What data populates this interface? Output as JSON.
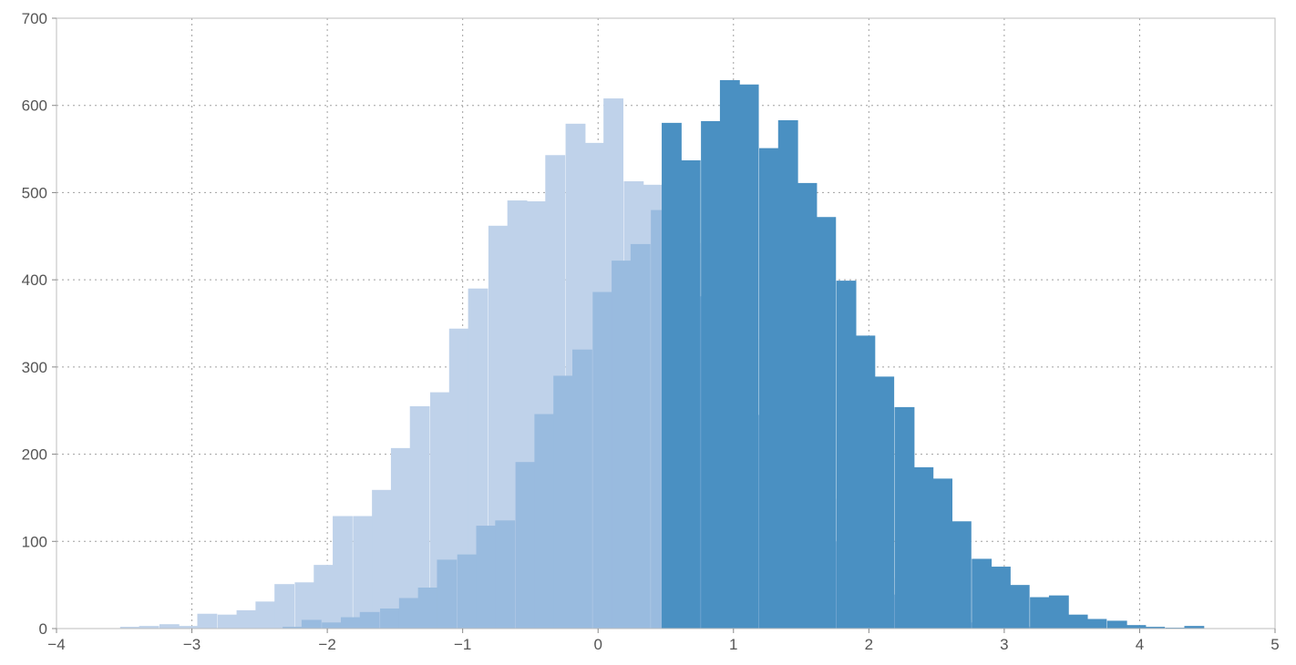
{
  "chart_data": {
    "type": "bar",
    "title": "",
    "xlabel": "",
    "ylabel": "",
    "xlim": [
      -4,
      5
    ],
    "ylim": [
      0,
      700
    ],
    "x_ticks": [
      -4,
      -3,
      -2,
      -1,
      0,
      1,
      2,
      3,
      4,
      5
    ],
    "x_tick_labels": [
      "−4",
      "−3",
      "−2",
      "−1",
      "0",
      "1",
      "2",
      "3",
      "4",
      "5"
    ],
    "y_ticks": [
      0,
      100,
      200,
      300,
      400,
      500,
      600,
      700
    ],
    "y_tick_labels": [
      "0",
      "100",
      "200",
      "300",
      "400",
      "500",
      "600",
      "700"
    ],
    "grid": true,
    "legend": "none",
    "bin_width": 0.143,
    "series": [
      {
        "color": "#bfd2ea",
        "bins": [
          [
            -3.53,
            2
          ],
          [
            -3.39,
            3
          ],
          [
            -3.24,
            5
          ],
          [
            -3.1,
            3
          ],
          [
            -2.96,
            17
          ],
          [
            -2.81,
            16
          ],
          [
            -2.67,
            21
          ],
          [
            -2.53,
            31
          ],
          [
            -2.39,
            51
          ],
          [
            -2.24,
            53
          ],
          [
            -2.1,
            73
          ],
          [
            -1.96,
            129
          ],
          [
            -1.81,
            129
          ],
          [
            -1.67,
            159
          ],
          [
            -1.53,
            207
          ],
          [
            -1.39,
            255
          ],
          [
            -1.24,
            271
          ],
          [
            -1.1,
            344
          ],
          [
            -0.96,
            390
          ],
          [
            -0.81,
            462
          ],
          [
            -0.67,
            491
          ],
          [
            -0.53,
            490
          ],
          [
            -0.39,
            543
          ],
          [
            -0.24,
            579
          ],
          [
            -0.1,
            557
          ],
          [
            0.04,
            608
          ],
          [
            0.19,
            513
          ],
          [
            0.33,
            509
          ],
          [
            0.47,
            480
          ],
          [
            0.61,
            442
          ],
          [
            0.76,
            381
          ],
          [
            0.9,
            339
          ],
          [
            1.04,
            332
          ],
          [
            1.19,
            245
          ],
          [
            1.33,
            188
          ],
          [
            1.47,
            190
          ],
          [
            1.61,
            149
          ],
          [
            1.76,
            101
          ],
          [
            1.9,
            69
          ],
          [
            2.04,
            58
          ],
          [
            2.19,
            39
          ],
          [
            2.33,
            33
          ],
          [
            2.47,
            26
          ],
          [
            2.61,
            10
          ],
          [
            2.76,
            7
          ],
          [
            2.9,
            6
          ],
          [
            3.04,
            3
          ],
          [
            3.19,
            2
          ],
          [
            3.33,
            2
          ],
          [
            3.47,
            3
          ]
        ]
      },
      {
        "color": "#99bbdf",
        "bins": [
          [
            -2.33,
            2
          ],
          [
            -2.19,
            10
          ],
          [
            -2.04,
            7
          ],
          [
            -1.9,
            13
          ],
          [
            -1.76,
            19
          ],
          [
            -1.61,
            23
          ],
          [
            -1.47,
            35
          ],
          [
            -1.33,
            47
          ],
          [
            -1.19,
            79
          ],
          [
            -1.04,
            85
          ],
          [
            -0.9,
            118
          ],
          [
            -0.76,
            124
          ],
          [
            -0.61,
            191
          ],
          [
            -0.47,
            246
          ],
          [
            -0.33,
            290
          ],
          [
            -0.19,
            320
          ],
          [
            -0.04,
            386
          ],
          [
            0.1,
            422
          ],
          [
            0.24,
            441
          ],
          [
            0.39,
            480
          ],
          [
            0.53,
            442
          ],
          [
            0.67,
            381
          ],
          [
            0.81,
            339
          ],
          [
            0.96,
            332
          ],
          [
            1.1,
            245
          ],
          [
            1.24,
            188
          ],
          [
            1.39,
            190
          ],
          [
            1.53,
            149
          ],
          [
            1.67,
            100
          ],
          [
            1.81,
            69
          ],
          [
            1.96,
            58
          ],
          [
            2.1,
            39
          ],
          [
            2.24,
            33
          ],
          [
            2.39,
            26
          ],
          [
            2.53,
            10
          ],
          [
            2.67,
            7
          ],
          [
            2.81,
            8
          ],
          [
            2.96,
            3
          ],
          [
            3.1,
            2
          ],
          [
            3.24,
            2
          ],
          [
            3.39,
            4
          ]
        ]
      },
      {
        "color": "#4a90c2",
        "bins": [
          [
            0.47,
            580
          ],
          [
            0.61,
            537
          ],
          [
            0.76,
            582
          ],
          [
            0.9,
            629
          ],
          [
            1.04,
            624
          ],
          [
            1.19,
            551
          ],
          [
            1.33,
            583
          ],
          [
            1.47,
            511
          ],
          [
            1.61,
            472
          ],
          [
            1.76,
            399
          ],
          [
            1.9,
            336
          ],
          [
            2.04,
            289
          ],
          [
            2.19,
            254
          ],
          [
            2.33,
            185
          ],
          [
            2.47,
            172
          ],
          [
            2.61,
            123
          ],
          [
            2.76,
            80
          ],
          [
            2.9,
            71
          ],
          [
            3.04,
            50
          ],
          [
            3.19,
            36
          ],
          [
            3.33,
            38
          ],
          [
            3.47,
            16
          ],
          [
            3.61,
            11
          ],
          [
            3.76,
            9
          ],
          [
            3.9,
            4
          ],
          [
            4.04,
            2
          ],
          [
            4.19,
            1
          ],
          [
            4.33,
            3
          ]
        ]
      }
    ]
  }
}
